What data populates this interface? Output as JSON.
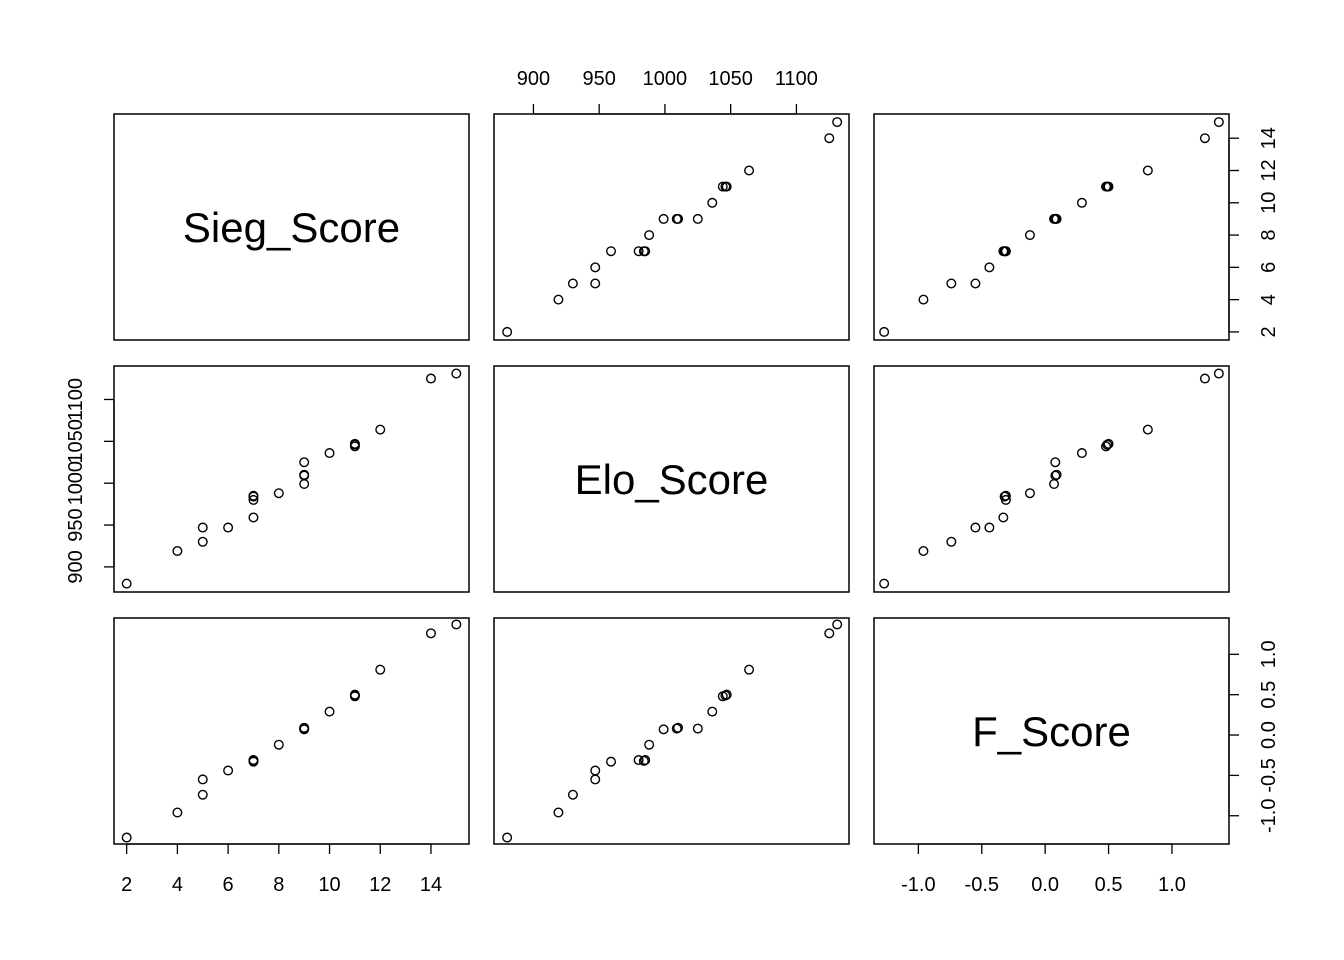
{
  "chart_data": {
    "type": "scatter",
    "kind": "scatterplot-matrix",
    "variables": [
      "Sieg_Score",
      "Elo_Score",
      "F_Score"
    ],
    "ranges": {
      "Sieg_Score": [
        1.5,
        15.5
      ],
      "Elo_Score": [
        870,
        1140
      ],
      "F_Score": [
        -1.35,
        1.45
      ]
    },
    "ticks": {
      "Sieg_Score": [
        2,
        4,
        6,
        8,
        10,
        12,
        14
      ],
      "Elo_Score": [
        900,
        950,
        1000,
        1050,
        1100
      ],
      "F_Score": [
        -1.0,
        -0.5,
        0.0,
        0.5,
        1.0
      ]
    },
    "tick_labels": {
      "Sieg_Score": [
        "2",
        "4",
        "6",
        "8",
        "10",
        "12",
        "14"
      ],
      "Elo_Score": [
        "900",
        "950",
        "1000",
        "1050",
        "1100"
      ],
      "F_Score": [
        "-1.0",
        "-0.5",
        "0.0",
        "0.5",
        "1.0"
      ]
    },
    "points": {
      "Sieg_Score": [
        2,
        4,
        5,
        5,
        6,
        7,
        7,
        7,
        7,
        8,
        9,
        9,
        9,
        9,
        10,
        11,
        11,
        11,
        12,
        14,
        15
      ],
      "Elo_Score": [
        880,
        919,
        930,
        947,
        947,
        959,
        980,
        984,
        985,
        988,
        999,
        1009,
        1025,
        1010,
        1036,
        1044,
        1046,
        1047,
        1064,
        1125,
        1131
      ],
      "F_Score": [
        -1.27,
        -0.96,
        -0.74,
        -0.55,
        -0.44,
        -0.33,
        -0.31,
        -0.32,
        -0.31,
        -0.12,
        0.07,
        0.08,
        0.08,
        0.09,
        0.29,
        0.48,
        0.49,
        0.5,
        0.81,
        1.26,
        1.37
      ]
    },
    "grid": false,
    "legend": "none"
  }
}
